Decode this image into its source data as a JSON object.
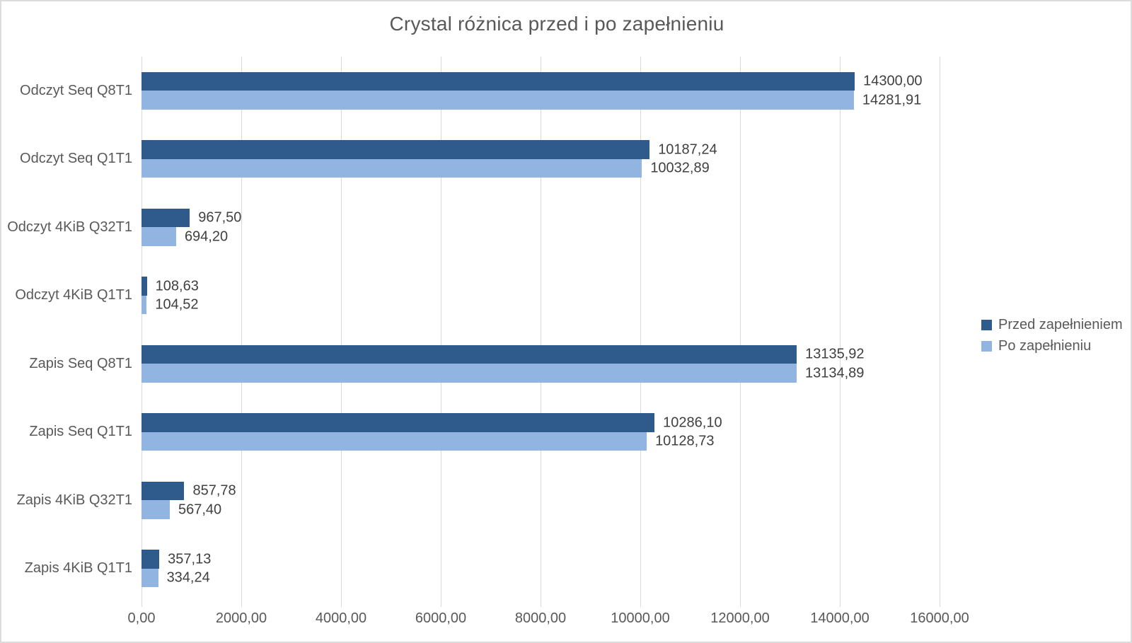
{
  "title": "Crystal różnica przed i po zapełnieniu",
  "colors": {
    "series1": "#2f5b8c",
    "series2": "#92b4e0",
    "gridline": "#d9d9d9",
    "title_text": "#595959",
    "axis_text": "#595959",
    "value_text": "#404040",
    "canvas_border": "#dcdcdc",
    "background": "#ffffff"
  },
  "chart_data": {
    "type": "bar",
    "orientation": "horizontal",
    "title": "Crystal różnica przed i po zapełnieniu",
    "categories": [
      "Odczyt Seq Q8T1",
      "Odczyt Seq Q1T1",
      "Odczyt 4KiB Q32T1",
      "Odczyt 4KiB Q1T1",
      "Zapis Seq Q8T1",
      "Zapis Seq Q1T1",
      "Zapis 4KiB Q32T1",
      "Zapis 4KiB Q1T1"
    ],
    "series": [
      {
        "name": "Przed zapełnieniem",
        "color": "#2f5b8c",
        "values": [
          14300.0,
          10187.24,
          967.5,
          108.63,
          13135.92,
          10286.1,
          857.78,
          357.13
        ],
        "value_labels": [
          "14300,00",
          "10187,24",
          "967,50",
          "108,63",
          "13135,92",
          "10286,10",
          "857,78",
          "357,13"
        ]
      },
      {
        "name": "Po zapełnieniu",
        "color": "#92b4e0",
        "values": [
          14281.91,
          10032.89,
          694.2,
          104.52,
          13134.89,
          10128.73,
          567.4,
          334.24
        ],
        "value_labels": [
          "14281,91",
          "10032,89",
          "694,20",
          "104,52",
          "13134,89",
          "10128,73",
          "567,40",
          "334,24"
        ]
      }
    ],
    "x_axis": {
      "min": 0,
      "max": 16000,
      "tick_interval": 2000,
      "tick_labels": [
        "0,00",
        "2000,00",
        "4000,00",
        "6000,00",
        "8000,00",
        "10000,00",
        "12000,00",
        "14000,00",
        "16000,00"
      ]
    },
    "grid": true,
    "legend": {
      "position": "right",
      "entries": [
        "Przed zapełnieniem",
        "Po zapełnieniu"
      ]
    },
    "data_labels": "shown right of each bar, comma decimal separator"
  }
}
